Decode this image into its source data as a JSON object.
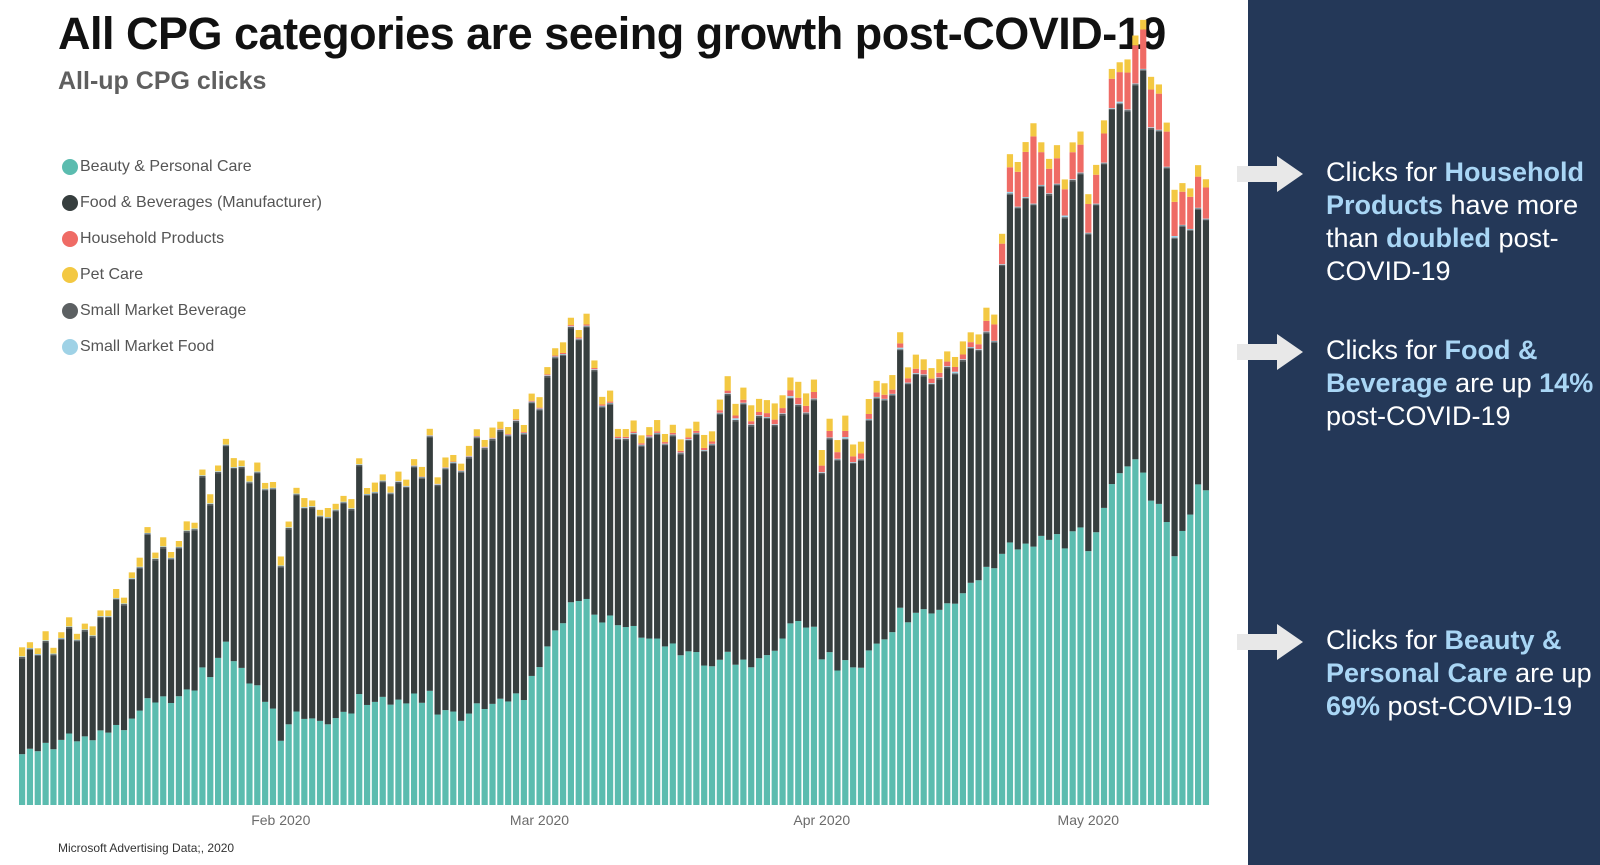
{
  "title": "All CPG categories are seeing growth post-COVID-19",
  "subtitle": "All-up CPG clicks",
  "source": "Microsoft Advertising Data;, 2020",
  "colors": {
    "beauty": "#5bbcaf",
    "food": "#363e3e",
    "household": "#ef6b65",
    "pet": "#f3c842",
    "small_bev": "#5c6062",
    "small_food": "#9fd2e6",
    "panel_bg": "#243858",
    "highlight": "#a9d6f5"
  },
  "legend": [
    {
      "label": "Beauty & Personal Care",
      "color": "#5bbcaf"
    },
    {
      "label": "Food & Beverages (Manufacturer)",
      "color": "#363e3e"
    },
    {
      "label": "Household Products",
      "color": "#ef6b65"
    },
    {
      "label": "Pet Care",
      "color": "#f3c842"
    },
    {
      "label": "Small Market Beverage",
      "color": "#5c6062"
    },
    {
      "label": "Small Market Food",
      "color": "#9fd2e6"
    }
  ],
  "callouts": [
    {
      "segments": [
        {
          "text": "Clicks for ",
          "hl": false
        },
        {
          "text": "Household Products",
          "hl": true
        },
        {
          "text": " have more than ",
          "hl": false
        },
        {
          "text": "doubled",
          "hl": true
        },
        {
          "text": " post-COVID-19",
          "hl": false
        }
      ]
    },
    {
      "segments": [
        {
          "text": "Clicks for ",
          "hl": false
        },
        {
          "text": "Food & Beverage",
          "hl": true
        },
        {
          "text": " are up ",
          "hl": false
        },
        {
          "text": "14%",
          "hl": true
        },
        {
          "text": " post-COVID-19",
          "hl": false
        }
      ]
    },
    {
      "segments": [
        {
          "text": "Clicks for ",
          "hl": false
        },
        {
          "text": "Beauty & Personal Care",
          "hl": true
        },
        {
          "text": " are up ",
          "hl": false
        },
        {
          "text": "69%",
          "hl": true
        },
        {
          "text": " post-COVID-19",
          "hl": false
        }
      ]
    }
  ],
  "chart_data": {
    "type": "bar",
    "stacked": true,
    "xlabel": "",
    "ylabel": "",
    "x_tick_labels": [
      "Feb 2020",
      "Mar 2020",
      "Apr 2020",
      "May 2020"
    ],
    "series_order": [
      "Beauty & Personal Care",
      "Food & Beverages (Manufacturer)",
      "Small Market Beverage",
      "Small Market Food",
      "Household Products",
      "Pet Care"
    ],
    "beauty_key_points": [
      [
        0,
        62
      ],
      [
        6,
        80
      ],
      [
        10,
        85
      ],
      [
        14,
        103
      ],
      [
        17,
        125
      ],
      [
        19,
        128
      ],
      [
        22,
        142
      ],
      [
        24,
        162
      ],
      [
        26,
        192
      ],
      [
        32,
        114
      ],
      [
        34,
        111
      ],
      [
        39,
        102
      ],
      [
        44,
        122
      ],
      [
        50,
        130
      ],
      [
        56,
        105
      ],
      [
        58,
        118
      ],
      [
        64,
        134
      ],
      [
        67,
        197
      ],
      [
        71,
        256
      ],
      [
        74,
        231
      ],
      [
        80,
        203
      ],
      [
        85,
        185
      ],
      [
        88,
        168
      ],
      [
        95,
        178
      ],
      [
        99,
        228
      ],
      [
        104,
        170
      ],
      [
        110,
        196
      ],
      [
        112,
        228
      ],
      [
        118,
        240
      ],
      [
        126,
        313
      ],
      [
        136,
        336
      ],
      [
        142,
        424
      ],
      [
        147,
        307
      ],
      [
        150,
        385
      ]
    ],
    "other_key_points": [
      [
        0,
        117
      ],
      [
        5,
        120
      ],
      [
        10,
        132
      ],
      [
        14,
        167
      ],
      [
        20,
        180
      ],
      [
        26,
        232
      ],
      [
        32,
        264
      ],
      [
        40,
        252
      ],
      [
        44,
        248
      ],
      [
        52,
        278
      ],
      [
        58,
        318
      ],
      [
        66,
        332
      ],
      [
        72,
        328
      ],
      [
        76,
        228
      ],
      [
        78,
        228
      ],
      [
        80,
        244
      ],
      [
        84,
        250
      ],
      [
        88,
        268
      ],
      [
        92,
        308
      ],
      [
        96,
        276
      ],
      [
        99,
        265
      ],
      [
        102,
        250
      ],
      [
        106,
        272
      ],
      [
        110,
        286
      ],
      [
        113,
        296
      ],
      [
        115,
        280
      ],
      [
        120,
        283
      ],
      [
        124,
        280
      ],
      [
        126,
        418
      ],
      [
        132,
        422
      ],
      [
        136,
        428
      ],
      [
        141,
        430
      ],
      [
        143,
        486
      ],
      [
        145,
        430
      ],
      [
        150,
        330
      ]
    ],
    "noise": [
      0,
      3,
      -2,
      4,
      -5,
      2,
      6,
      -3,
      1,
      -4,
      5,
      -1,
      3,
      -6,
      2,
      4,
      -2,
      0,
      5,
      -3
    ],
    "dips": [
      [
        33,
        -45
      ],
      [
        34,
        -25
      ],
      [
        38,
        -12
      ],
      [
        66,
        -25
      ],
      [
        71,
        -10
      ],
      [
        74,
        -18
      ],
      [
        102,
        -22
      ],
      [
        106,
        -30
      ],
      [
        107,
        -20
      ],
      [
        136,
        -40
      ],
      [
        137,
        -30
      ],
      [
        138,
        -15
      ],
      [
        133,
        -15
      ]
    ],
    "spikes": [
      [
        16,
        30
      ],
      [
        23,
        22
      ],
      [
        43,
        25
      ],
      [
        44,
        12
      ],
      [
        52,
        28
      ],
      [
        89,
        25
      ],
      [
        90,
        20
      ],
      [
        101,
        18
      ],
      [
        109,
        20
      ],
      [
        112,
        18
      ],
      [
        139,
        30
      ],
      [
        140,
        20
      ],
      [
        145,
        22
      ],
      [
        146,
        15
      ]
    ],
    "household_key_points": [
      [
        0,
        0
      ],
      [
        44,
        0
      ],
      [
        84,
        2
      ],
      [
        94,
        4
      ],
      [
        99,
        8
      ],
      [
        104,
        8
      ],
      [
        110,
        5
      ],
      [
        122,
        6
      ],
      [
        124,
        20
      ],
      [
        126,
        30
      ],
      [
        128,
        55
      ],
      [
        129,
        82
      ],
      [
        130,
        40
      ],
      [
        131,
        30
      ],
      [
        136,
        35
      ],
      [
        140,
        36
      ],
      [
        141,
        45
      ],
      [
        143,
        48
      ],
      [
        145,
        44
      ],
      [
        150,
        38
      ]
    ],
    "pet_key_points": [
      [
        0,
        7
      ],
      [
        40,
        7
      ],
      [
        84,
        10
      ],
      [
        94,
        16
      ],
      [
        110,
        14
      ],
      [
        120,
        12
      ],
      [
        124,
        12
      ],
      [
        130,
        12
      ],
      [
        142,
        12
      ],
      [
        150,
        10
      ]
    ],
    "x_ticks": [
      {
        "label": "Feb 2020",
        "index": 33
      },
      {
        "label": "Mar 2020",
        "index": 66
      },
      {
        "label": "Apr 2020",
        "index": 102
      },
      {
        "label": "May 2020",
        "index": 136
      }
    ],
    "n_bars": 152,
    "scale_note": "values are estimated relative click volumes (no y-axis shown); max stack ≈ 880"
  }
}
